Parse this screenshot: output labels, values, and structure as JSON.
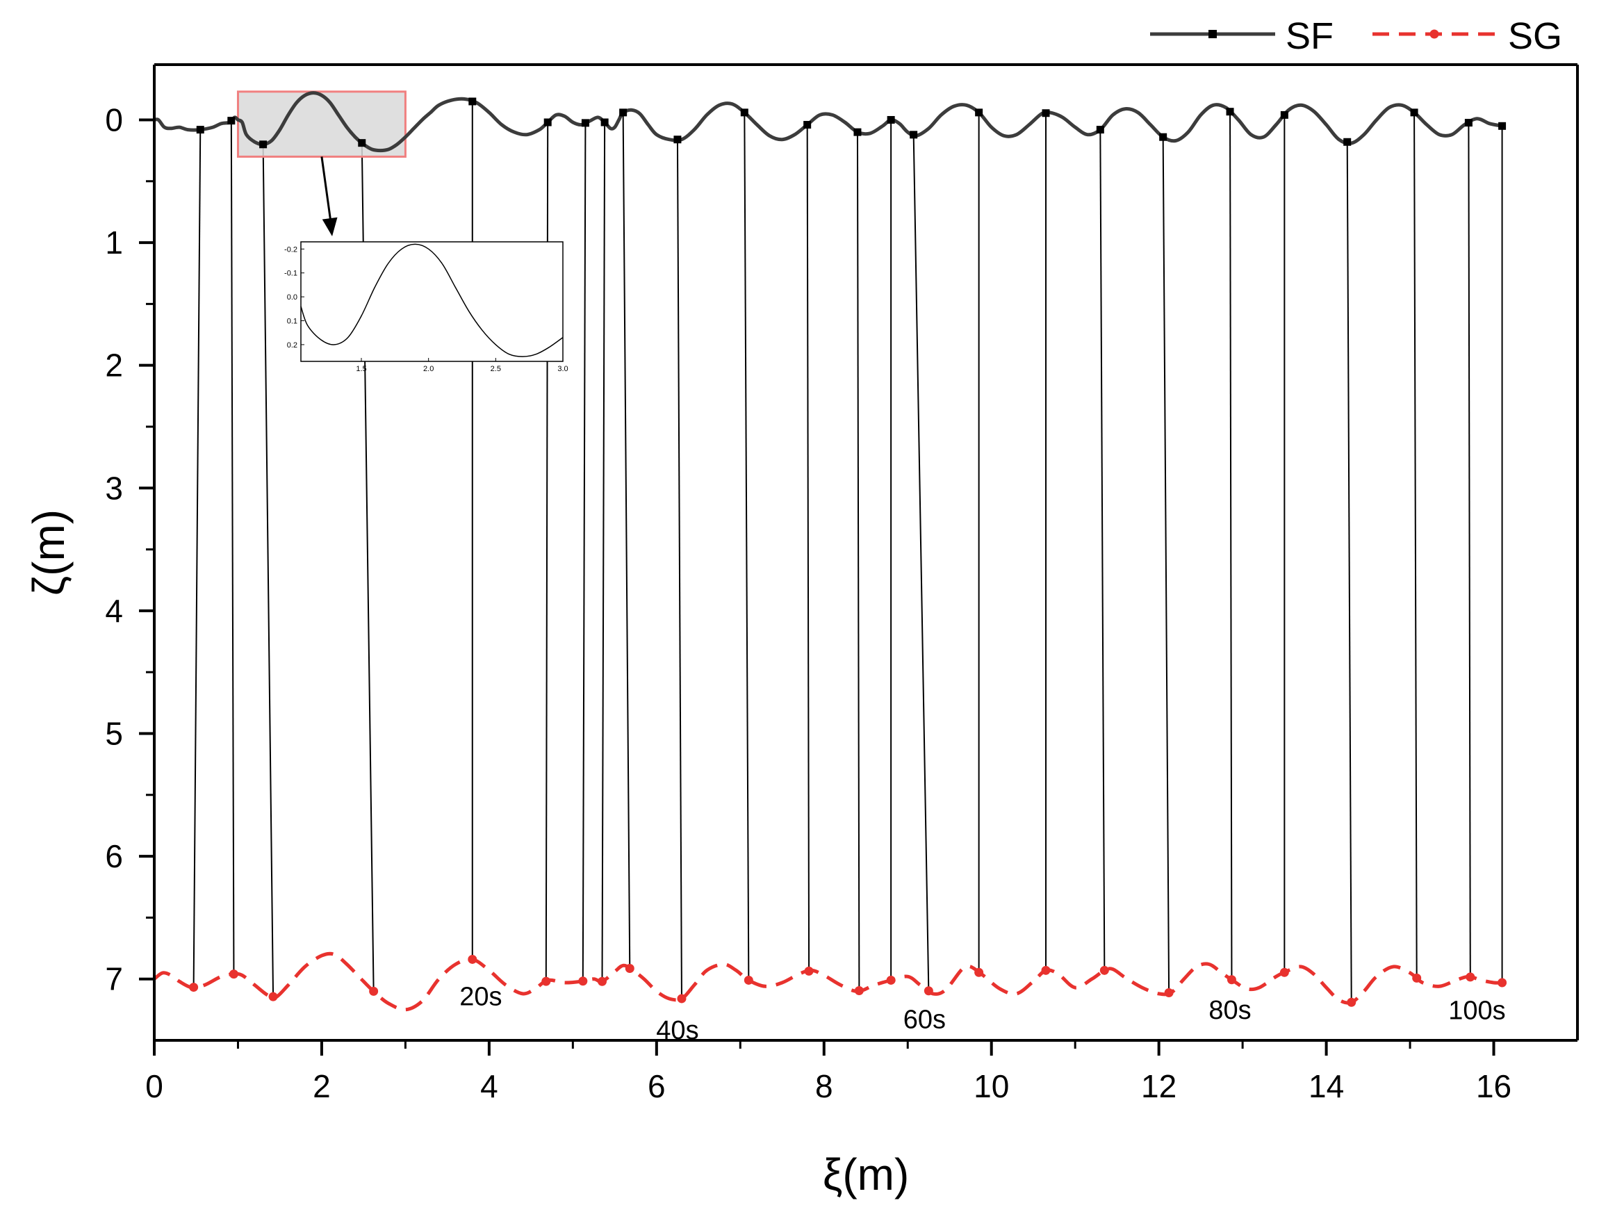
{
  "chart_data": {
    "type": "line",
    "title": "",
    "xlabel": "ξ(m)",
    "ylabel": "ζ(m)",
    "xlim": [
      0,
      17
    ],
    "ylim": [
      7.5,
      -0.45
    ],
    "y_inverted": true,
    "xticks": [
      0,
      2,
      4,
      6,
      8,
      10,
      12,
      14,
      16
    ],
    "xtick_labels": [
      "0",
      "2",
      "4",
      "6",
      "8",
      "10",
      "12",
      "14",
      "16"
    ],
    "yticks": [
      0,
      1,
      2,
      3,
      4,
      5,
      6,
      7
    ],
    "ytick_labels": [
      "0",
      "1",
      "2",
      "3",
      "4",
      "5",
      "6",
      "7"
    ],
    "legend_position": "top-right",
    "series": [
      {
        "name": "SF",
        "color": "#3c3c3c",
        "style": "solid",
        "marker": "square",
        "points": [
          [
            0.0,
            0.0
          ],
          [
            0.05,
            0.0
          ],
          [
            0.12,
            0.06
          ],
          [
            0.2,
            0.07
          ],
          [
            0.3,
            0.06
          ],
          [
            0.4,
            0.08
          ],
          [
            0.55,
            0.08
          ],
          [
            0.7,
            0.06
          ],
          [
            0.8,
            0.03
          ],
          [
            0.9,
            0.02
          ],
          [
            0.96,
            -0.02
          ],
          [
            1.0,
            0.0
          ],
          [
            1.05,
            0.02
          ],
          [
            1.1,
            0.12
          ],
          [
            1.2,
            0.18
          ],
          [
            1.3,
            0.2
          ],
          [
            1.4,
            0.17
          ],
          [
            1.5,
            0.08
          ],
          [
            1.6,
            -0.04
          ],
          [
            1.7,
            -0.14
          ],
          [
            1.8,
            -0.2
          ],
          [
            1.9,
            -0.22
          ],
          [
            2.0,
            -0.2
          ],
          [
            2.1,
            -0.14
          ],
          [
            2.2,
            -0.04
          ],
          [
            2.3,
            0.06
          ],
          [
            2.4,
            0.14
          ],
          [
            2.5,
            0.2
          ],
          [
            2.6,
            0.24
          ],
          [
            2.7,
            0.25
          ],
          [
            2.8,
            0.24
          ],
          [
            2.9,
            0.2
          ],
          [
            3.0,
            0.14
          ],
          [
            3.1,
            0.07
          ],
          [
            3.2,
            0.0
          ],
          [
            3.3,
            -0.06
          ],
          [
            3.4,
            -0.12
          ],
          [
            3.55,
            -0.16
          ],
          [
            3.7,
            -0.17
          ],
          [
            3.85,
            -0.14
          ],
          [
            4.0,
            -0.06
          ],
          [
            4.15,
            0.04
          ],
          [
            4.3,
            0.1
          ],
          [
            4.45,
            0.12
          ],
          [
            4.6,
            0.08
          ],
          [
            4.7,
            0.02
          ],
          [
            4.8,
            -0.04
          ],
          [
            4.9,
            -0.03
          ],
          [
            5.0,
            0.02
          ],
          [
            5.1,
            0.04
          ],
          [
            5.2,
            0.01
          ],
          [
            5.3,
            -0.02
          ],
          [
            5.38,
            0.02
          ],
          [
            5.45,
            0.07
          ],
          [
            5.5,
            0.06
          ],
          [
            5.55,
            0.0
          ],
          [
            5.6,
            -0.06
          ],
          [
            5.7,
            -0.08
          ],
          [
            5.8,
            -0.05
          ],
          [
            5.9,
            0.04
          ],
          [
            6.0,
            0.12
          ],
          [
            6.15,
            0.16
          ],
          [
            6.3,
            0.16
          ],
          [
            6.45,
            0.08
          ],
          [
            6.6,
            -0.04
          ],
          [
            6.75,
            -0.12
          ],
          [
            6.9,
            -0.13
          ],
          [
            7.05,
            -0.06
          ],
          [
            7.2,
            0.04
          ],
          [
            7.35,
            0.13
          ],
          [
            7.5,
            0.16
          ],
          [
            7.65,
            0.12
          ],
          [
            7.8,
            0.04
          ],
          [
            7.95,
            -0.04
          ],
          [
            8.1,
            -0.04
          ],
          [
            8.25,
            0.02
          ],
          [
            8.4,
            0.1
          ],
          [
            8.55,
            0.11
          ],
          [
            8.7,
            0.05
          ],
          [
            8.8,
            0.0
          ],
          [
            8.9,
            0.03
          ],
          [
            9.0,
            0.1
          ],
          [
            9.1,
            0.13
          ],
          [
            9.25,
            0.07
          ],
          [
            9.4,
            -0.04
          ],
          [
            9.55,
            -0.11
          ],
          [
            9.7,
            -0.12
          ],
          [
            9.85,
            -0.06
          ],
          [
            10.0,
            0.06
          ],
          [
            10.15,
            0.13
          ],
          [
            10.3,
            0.12
          ],
          [
            10.45,
            0.04
          ],
          [
            10.6,
            -0.05
          ],
          [
            10.7,
            -0.06
          ],
          [
            10.85,
            -0.02
          ],
          [
            11.0,
            0.06
          ],
          [
            11.15,
            0.12
          ],
          [
            11.3,
            0.08
          ],
          [
            11.45,
            -0.04
          ],
          [
            11.6,
            -0.09
          ],
          [
            11.75,
            -0.06
          ],
          [
            11.9,
            0.04
          ],
          [
            12.05,
            0.14
          ],
          [
            12.2,
            0.17
          ],
          [
            12.35,
            0.1
          ],
          [
            12.5,
            -0.04
          ],
          [
            12.65,
            -0.12
          ],
          [
            12.8,
            -0.1
          ],
          [
            12.95,
            0.0
          ],
          [
            13.1,
            0.12
          ],
          [
            13.25,
            0.14
          ],
          [
            13.4,
            0.04
          ],
          [
            13.55,
            -0.08
          ],
          [
            13.7,
            -0.12
          ],
          [
            13.85,
            -0.07
          ],
          [
            14.0,
            0.04
          ],
          [
            14.15,
            0.16
          ],
          [
            14.3,
            0.19
          ],
          [
            14.45,
            0.12
          ],
          [
            14.6,
            0.0
          ],
          [
            14.75,
            -0.1
          ],
          [
            14.9,
            -0.12
          ],
          [
            15.05,
            -0.06
          ],
          [
            15.2,
            0.04
          ],
          [
            15.35,
            0.12
          ],
          [
            15.5,
            0.12
          ],
          [
            15.65,
            0.04
          ],
          [
            15.8,
            -0.01
          ],
          [
            15.95,
            0.03
          ],
          [
            16.1,
            0.05
          ]
        ]
      },
      {
        "name": "SG",
        "color": "#e8322e",
        "style": "dashed",
        "marker": "circle",
        "points": [
          [
            0.0,
            7.0
          ],
          [
            0.1,
            6.95
          ],
          [
            0.2,
            6.97
          ],
          [
            0.3,
            7.02
          ],
          [
            0.45,
            7.07
          ],
          [
            0.6,
            7.05
          ],
          [
            0.8,
            6.98
          ],
          [
            0.95,
            6.96
          ],
          [
            1.05,
            6.97
          ],
          [
            1.2,
            7.05
          ],
          [
            1.35,
            7.13
          ],
          [
            1.45,
            7.15
          ],
          [
            1.6,
            7.05
          ],
          [
            1.8,
            6.9
          ],
          [
            2.0,
            6.81
          ],
          [
            2.15,
            6.8
          ],
          [
            2.3,
            6.88
          ],
          [
            2.5,
            7.02
          ],
          [
            2.65,
            7.12
          ],
          [
            2.8,
            7.2
          ],
          [
            3.0,
            7.25
          ],
          [
            3.2,
            7.18
          ],
          [
            3.4,
            7.0
          ],
          [
            3.6,
            6.88
          ],
          [
            3.8,
            6.84
          ],
          [
            4.0,
            6.93
          ],
          [
            4.2,
            7.05
          ],
          [
            4.4,
            7.12
          ],
          [
            4.55,
            7.08
          ],
          [
            4.7,
            7.01
          ],
          [
            4.9,
            7.03
          ],
          [
            5.1,
            7.02
          ],
          [
            5.25,
            7.0
          ],
          [
            5.35,
            7.02
          ],
          [
            5.5,
            6.94
          ],
          [
            5.6,
            6.89
          ],
          [
            5.7,
            6.92
          ],
          [
            5.85,
            7.0
          ],
          [
            6.0,
            7.1
          ],
          [
            6.15,
            7.16
          ],
          [
            6.3,
            7.16
          ],
          [
            6.45,
            7.05
          ],
          [
            6.6,
            6.93
          ],
          [
            6.8,
            6.88
          ],
          [
            6.95,
            6.93
          ],
          [
            7.1,
            7.01
          ],
          [
            7.3,
            7.06
          ],
          [
            7.5,
            7.03
          ],
          [
            7.7,
            6.96
          ],
          [
            7.85,
            6.93
          ],
          [
            8.0,
            6.97
          ],
          [
            8.2,
            7.05
          ],
          [
            8.4,
            7.1
          ],
          [
            8.6,
            7.05
          ],
          [
            8.8,
            7.01
          ],
          [
            9.0,
            6.98
          ],
          [
            9.15,
            7.05
          ],
          [
            9.3,
            7.12
          ],
          [
            9.45,
            7.09
          ],
          [
            9.65,
            6.92
          ],
          [
            9.75,
            6.9
          ],
          [
            9.9,
            6.97
          ],
          [
            10.1,
            7.08
          ],
          [
            10.3,
            7.12
          ],
          [
            10.5,
            7.02
          ],
          [
            10.65,
            6.93
          ],
          [
            10.8,
            6.96
          ],
          [
            11.0,
            7.07
          ],
          [
            11.2,
            7.0
          ],
          [
            11.35,
            6.93
          ],
          [
            11.45,
            6.92
          ],
          [
            11.6,
            6.99
          ],
          [
            11.8,
            7.07
          ],
          [
            12.0,
            7.12
          ],
          [
            12.15,
            7.11
          ],
          [
            12.3,
            7.0
          ],
          [
            12.45,
            6.9
          ],
          [
            12.6,
            6.88
          ],
          [
            12.75,
            6.95
          ],
          [
            12.9,
            7.02
          ],
          [
            13.05,
            7.08
          ],
          [
            13.2,
            7.07
          ],
          [
            13.4,
            6.98
          ],
          [
            13.55,
            6.93
          ],
          [
            13.7,
            6.9
          ],
          [
            13.85,
            6.96
          ],
          [
            14.0,
            7.07
          ],
          [
            14.15,
            7.17
          ],
          [
            14.3,
            7.19
          ],
          [
            14.45,
            7.1
          ],
          [
            14.6,
            6.98
          ],
          [
            14.8,
            6.9
          ],
          [
            15.0,
            6.95
          ],
          [
            15.15,
            7.03
          ],
          [
            15.35,
            7.06
          ],
          [
            15.55,
            7.01
          ],
          [
            15.7,
            6.98
          ],
          [
            15.85,
            7.01
          ],
          [
            16.0,
            7.03
          ],
          [
            16.1,
            7.03
          ]
        ]
      }
    ],
    "sf_markers_x": [
      0.55,
      0.92,
      1.3,
      2.48,
      3.8,
      4.7,
      5.15,
      5.38,
      5.6,
      6.25,
      7.05,
      7.8,
      8.4,
      8.8,
      9.07,
      9.85,
      10.65,
      11.3,
      12.05,
      12.85,
      13.5,
      14.25,
      15.05,
      15.7,
      16.1
    ],
    "sg_markers_x": [
      0.47,
      0.95,
      1.42,
      2.62,
      3.8,
      4.68,
      5.12,
      5.35,
      5.68,
      6.3,
      7.1,
      7.82,
      8.42,
      8.8,
      9.25,
      9.85,
      10.65,
      11.35,
      12.12,
      12.87,
      13.5,
      14.3,
      15.08,
      15.72,
      16.1
    ],
    "annotations": [
      "20s",
      "40s",
      "60s",
      "80s",
      "100s"
    ],
    "annotation_anchor_x": [
      3.9,
      6.25,
      9.2,
      12.85,
      15.8
    ],
    "inset": {
      "xticks": [
        1.5,
        2.0,
        2.5,
        3.0
      ],
      "xtick_labels": [
        "1.5",
        "2.0",
        "2.5",
        "3.0"
      ],
      "yticks": [
        -0.2,
        -0.1,
        0.0,
        0.1,
        0.2
      ],
      "ytick_labels": [
        "-0.2",
        "-0.1",
        "0.0",
        "0.1",
        "0.2"
      ],
      "xlim": [
        1.05,
        3.0
      ],
      "ylim": [
        0.27,
        -0.23
      ],
      "points": [
        [
          1.05,
          0.04
        ],
        [
          1.1,
          0.12
        ],
        [
          1.2,
          0.18
        ],
        [
          1.3,
          0.2
        ],
        [
          1.4,
          0.17
        ],
        [
          1.5,
          0.08
        ],
        [
          1.6,
          -0.04
        ],
        [
          1.7,
          -0.14
        ],
        [
          1.8,
          -0.2
        ],
        [
          1.9,
          -0.22
        ],
        [
          2.0,
          -0.2
        ],
        [
          2.1,
          -0.14
        ],
        [
          2.2,
          -0.04
        ],
        [
          2.3,
          0.06
        ],
        [
          2.4,
          0.14
        ],
        [
          2.5,
          0.2
        ],
        [
          2.6,
          0.24
        ],
        [
          2.7,
          0.25
        ],
        [
          2.8,
          0.24
        ],
        [
          2.9,
          0.21
        ],
        [
          3.0,
          0.17
        ]
      ]
    },
    "zoom_region": {
      "x": [
        1.0,
        3.0
      ],
      "y": [
        -0.23,
        0.3
      ]
    }
  }
}
